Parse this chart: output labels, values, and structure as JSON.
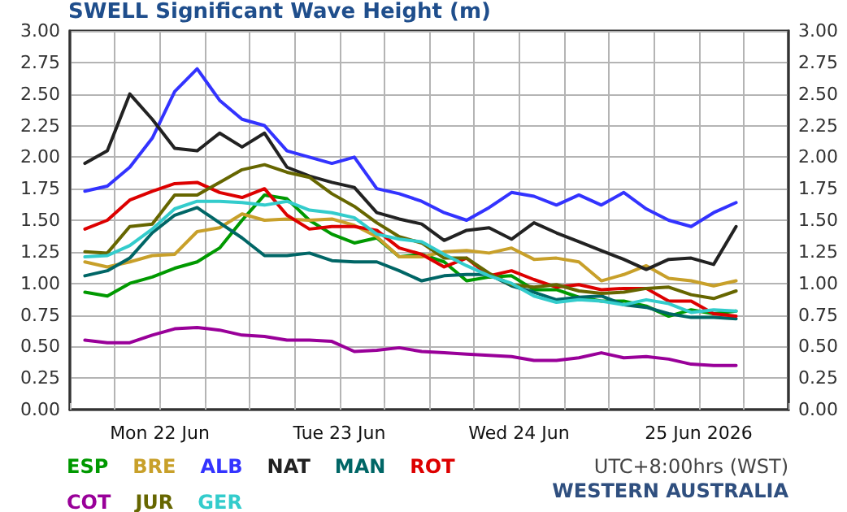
{
  "chart_data": {
    "type": "line",
    "title": "SWELL Significant Wave Height (m)",
    "annotations": [
      "UTC+8:00hrs (WST)",
      "WESTERN AUSTRALIA"
    ],
    "x": [
      "2026-06-22T02:00",
      "2026-06-22T05:00",
      "2026-06-22T08:00",
      "2026-06-22T11:00",
      "2026-06-22T14:00",
      "2026-06-22T17:00",
      "2026-06-22T20:00",
      "2026-06-22T23:00",
      "2026-06-23T02:00",
      "2026-06-23T05:00",
      "2026-06-23T08:00",
      "2026-06-23T11:00",
      "2026-06-23T14:00",
      "2026-06-23T17:00",
      "2026-06-23T20:00",
      "2026-06-23T23:00",
      "2026-06-24T02:00",
      "2026-06-24T05:00",
      "2026-06-24T08:00",
      "2026-06-24T11:00",
      "2026-06-24T14:00",
      "2026-06-24T17:00",
      "2026-06-24T20:00",
      "2026-06-24T23:00",
      "2026-06-25T02:00",
      "2026-06-25T05:00",
      "2026-06-25T08:00",
      "2026-06-25T11:00",
      "2026-06-25T14:00",
      "2026-06-25T17:00"
    ],
    "series": [
      {
        "name": "ESP",
        "color": "#009900",
        "values": [
          0.93,
          0.9,
          1.0,
          1.05,
          1.12,
          1.17,
          1.28,
          1.5,
          1.7,
          1.67,
          1.5,
          1.39,
          1.32,
          1.36,
          1.21,
          1.23,
          1.17,
          1.02,
          1.05,
          1.06,
          0.95,
          0.95,
          0.89,
          0.86,
          0.86,
          0.82,
          0.74,
          0.79,
          0.76,
          0.78
        ]
      },
      {
        "name": "BRE",
        "color": "#c8a02a",
        "values": [
          1.17,
          1.13,
          1.17,
          1.22,
          1.23,
          1.41,
          1.44,
          1.55,
          1.5,
          1.51,
          1.5,
          1.51,
          1.46,
          1.37,
          1.21,
          1.21,
          1.25,
          1.26,
          1.24,
          1.28,
          1.19,
          1.2,
          1.17,
          1.02,
          1.07,
          1.14,
          1.04,
          1.02,
          0.98,
          1.02
        ]
      },
      {
        "name": "ALB",
        "color": "#3333ff",
        "values": [
          1.73,
          1.77,
          1.92,
          2.15,
          2.52,
          2.7,
          2.45,
          2.3,
          2.25,
          2.05,
          2.0,
          1.95,
          2.0,
          1.75,
          1.71,
          1.65,
          1.56,
          1.5,
          1.6,
          1.72,
          1.69,
          1.62,
          1.7,
          1.62,
          1.72,
          1.59,
          1.5,
          1.45,
          1.56,
          1.64
        ]
      },
      {
        "name": "NAT",
        "color": "#222222",
        "values": [
          1.95,
          2.05,
          2.5,
          2.3,
          2.07,
          2.05,
          2.19,
          2.08,
          2.19,
          1.92,
          1.85,
          1.8,
          1.76,
          1.56,
          1.51,
          1.47,
          1.34,
          1.42,
          1.44,
          1.35,
          1.48,
          1.4,
          1.33,
          1.26,
          1.19,
          1.11,
          1.19,
          1.2,
          1.15,
          1.45
        ]
      },
      {
        "name": "MAN",
        "color": "#006666",
        "values": [
          1.06,
          1.1,
          1.2,
          1.4,
          1.54,
          1.6,
          1.48,
          1.36,
          1.22,
          1.22,
          1.24,
          1.18,
          1.17,
          1.17,
          1.1,
          1.02,
          1.06,
          1.07,
          1.07,
          0.98,
          0.93,
          0.87,
          0.89,
          0.9,
          0.83,
          0.81,
          0.76,
          0.73,
          0.73,
          0.72
        ]
      },
      {
        "name": "ROT",
        "color": "#dd0000",
        "values": [
          1.43,
          1.5,
          1.66,
          1.73,
          1.79,
          1.8,
          1.72,
          1.68,
          1.75,
          1.54,
          1.43,
          1.45,
          1.45,
          1.42,
          1.28,
          1.23,
          1.13,
          1.2,
          1.06,
          1.1,
          1.03,
          0.97,
          0.99,
          0.95,
          0.96,
          0.96,
          0.86,
          0.86,
          0.76,
          0.74
        ]
      },
      {
        "name": "COT",
        "color": "#990099",
        "values": [
          0.55,
          0.53,
          0.53,
          0.59,
          0.64,
          0.65,
          0.63,
          0.59,
          0.58,
          0.55,
          0.55,
          0.54,
          0.46,
          0.47,
          0.49,
          0.46,
          0.45,
          0.44,
          0.43,
          0.42,
          0.39,
          0.39,
          0.41,
          0.45,
          0.41,
          0.42,
          0.4,
          0.36,
          0.35,
          0.35
        ]
      },
      {
        "name": "JUR",
        "color": "#666600",
        "values": [
          1.25,
          1.24,
          1.45,
          1.47,
          1.7,
          1.7,
          1.8,
          1.9,
          1.94,
          1.88,
          1.84,
          1.71,
          1.61,
          1.48,
          1.37,
          1.32,
          1.2,
          1.2,
          1.08,
          0.99,
          0.97,
          0.99,
          0.94,
          0.92,
          0.93,
          0.96,
          0.97,
          0.91,
          0.88,
          0.94
        ]
      },
      {
        "name": "GER",
        "color": "#33cccc",
        "values": [
          1.21,
          1.22,
          1.3,
          1.43,
          1.59,
          1.65,
          1.65,
          1.64,
          1.62,
          1.65,
          1.58,
          1.56,
          1.52,
          1.39,
          1.35,
          1.33,
          1.23,
          1.14,
          1.06,
          1.0,
          0.9,
          0.85,
          0.87,
          0.86,
          0.83,
          0.87,
          0.84,
          0.77,
          0.79,
          0.78
        ]
      }
    ],
    "xlim": [
      "2026-06-22T00:00",
      "2026-06-26T00:00"
    ],
    "xticks": [
      {
        "value": "2026-06-22T00:00",
        "label": null
      },
      {
        "value": "2026-06-22T06:00",
        "label": null
      },
      {
        "value": "2026-06-22T12:00",
        "label": "Mon 22 Jun"
      },
      {
        "value": "2026-06-22T18:00",
        "label": null
      },
      {
        "value": "2026-06-23T00:00",
        "label": null
      },
      {
        "value": "2026-06-23T06:00",
        "label": null
      },
      {
        "value": "2026-06-23T12:00",
        "label": "Tue 23 Jun"
      },
      {
        "value": "2026-06-23T18:00",
        "label": null
      },
      {
        "value": "2026-06-24T00:00",
        "label": null
      },
      {
        "value": "2026-06-24T06:00",
        "label": null
      },
      {
        "value": "2026-06-24T12:00",
        "label": "Wed 24 Jun"
      },
      {
        "value": "2026-06-24T18:00",
        "label": null
      },
      {
        "value": "2026-06-25T00:00",
        "label": null
      },
      {
        "value": "2026-06-25T06:00",
        "label": null
      },
      {
        "value": "2026-06-25T12:00",
        "label": "25 Jun 2026"
      },
      {
        "value": "2026-06-25T18:00",
        "label": null
      },
      {
        "value": "2026-06-26T00:00",
        "label": null
      }
    ],
    "ylim": [
      0,
      3
    ],
    "yticks": [
      {
        "value": 0,
        "label": "0.00"
      },
      {
        "value": 0.25,
        "label": "0.25"
      },
      {
        "value": 0.5,
        "label": "0.50"
      },
      {
        "value": 0.75,
        "label": "0.75"
      },
      {
        "value": 1,
        "label": "1.00"
      },
      {
        "value": 1.25,
        "label": "1.25"
      },
      {
        "value": 1.5,
        "label": "1.50"
      },
      {
        "value": 1.75,
        "label": "1.75"
      },
      {
        "value": 2,
        "label": "2.00"
      },
      {
        "value": 2.25,
        "label": "2.25"
      },
      {
        "value": 2.5,
        "label": "2.50"
      },
      {
        "value": 2.75,
        "label": "2.75"
      },
      {
        "value": 3,
        "label": "3.00"
      }
    ],
    "y2lim": [
      0,
      3
    ],
    "y2ticks": [
      {
        "value": 0,
        "label": "0.00"
      },
      {
        "value": 0.25,
        "label": "0.25"
      },
      {
        "value": 0.5,
        "label": "0.50"
      },
      {
        "value": 0.75,
        "label": "0.75"
      },
      {
        "value": 1,
        "label": "1.00"
      },
      {
        "value": 1.25,
        "label": "1.25"
      },
      {
        "value": 1.5,
        "label": "1.50"
      },
      {
        "value": 1.75,
        "label": "1.75"
      },
      {
        "value": 2,
        "label": "2.00"
      },
      {
        "value": 2.25,
        "label": "2.25"
      },
      {
        "value": 2.5,
        "label": "2.50"
      },
      {
        "value": 2.75,
        "label": "2.75"
      },
      {
        "value": 3,
        "label": "3.00"
      }
    ],
    "grid": true,
    "legend": "bottom left",
    "marker": "none",
    "line_style": "solid"
  }
}
